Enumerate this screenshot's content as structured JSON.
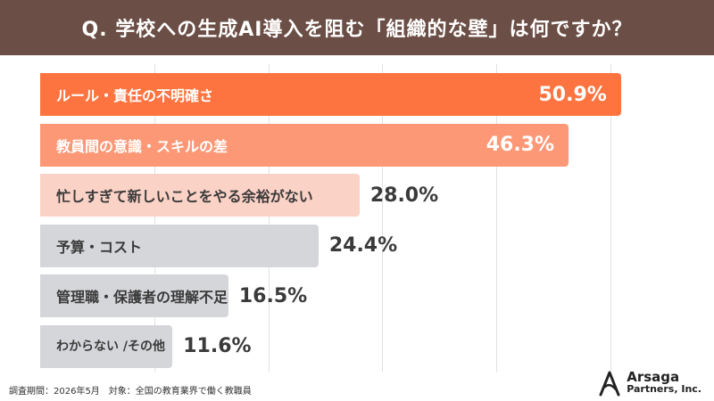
{
  "header": {
    "title": "Q. 学校への生成AI導入を阻む「組織的な壁」は何ですか？"
  },
  "chart_data": {
    "type": "bar",
    "orientation": "horizontal",
    "title": "Q. 学校への生成AI導入を阻む「組織的な壁」は何ですか？",
    "xlim": [
      0,
      60
    ],
    "grid": true,
    "categories": [
      "ルール・責任の不明確さ",
      "教員間の意識・スキルの差",
      "忙しすぎて新しいことをやる余裕がない",
      "予算・コスト",
      "管理職・保護者の理解不足",
      "わからない /その他"
    ],
    "values": [
      50.9,
      46.3,
      28.0,
      24.4,
      16.5,
      11.6
    ],
    "value_labels": [
      "50.9%",
      "46.3%",
      "28.0%",
      "24.4%",
      "16.5%",
      "11.6%"
    ],
    "colors": [
      "#fe7440",
      "#fd9876",
      "#fbd2c6",
      "#d5d6da",
      "#d5d6da",
      "#d5d6da"
    ]
  },
  "footer": {
    "note": "調査期間：2026年5月　対象：全国の教育業界で働く教職員",
    "logo_name": "Arsaga",
    "logo_sub": "Partners, Inc."
  }
}
